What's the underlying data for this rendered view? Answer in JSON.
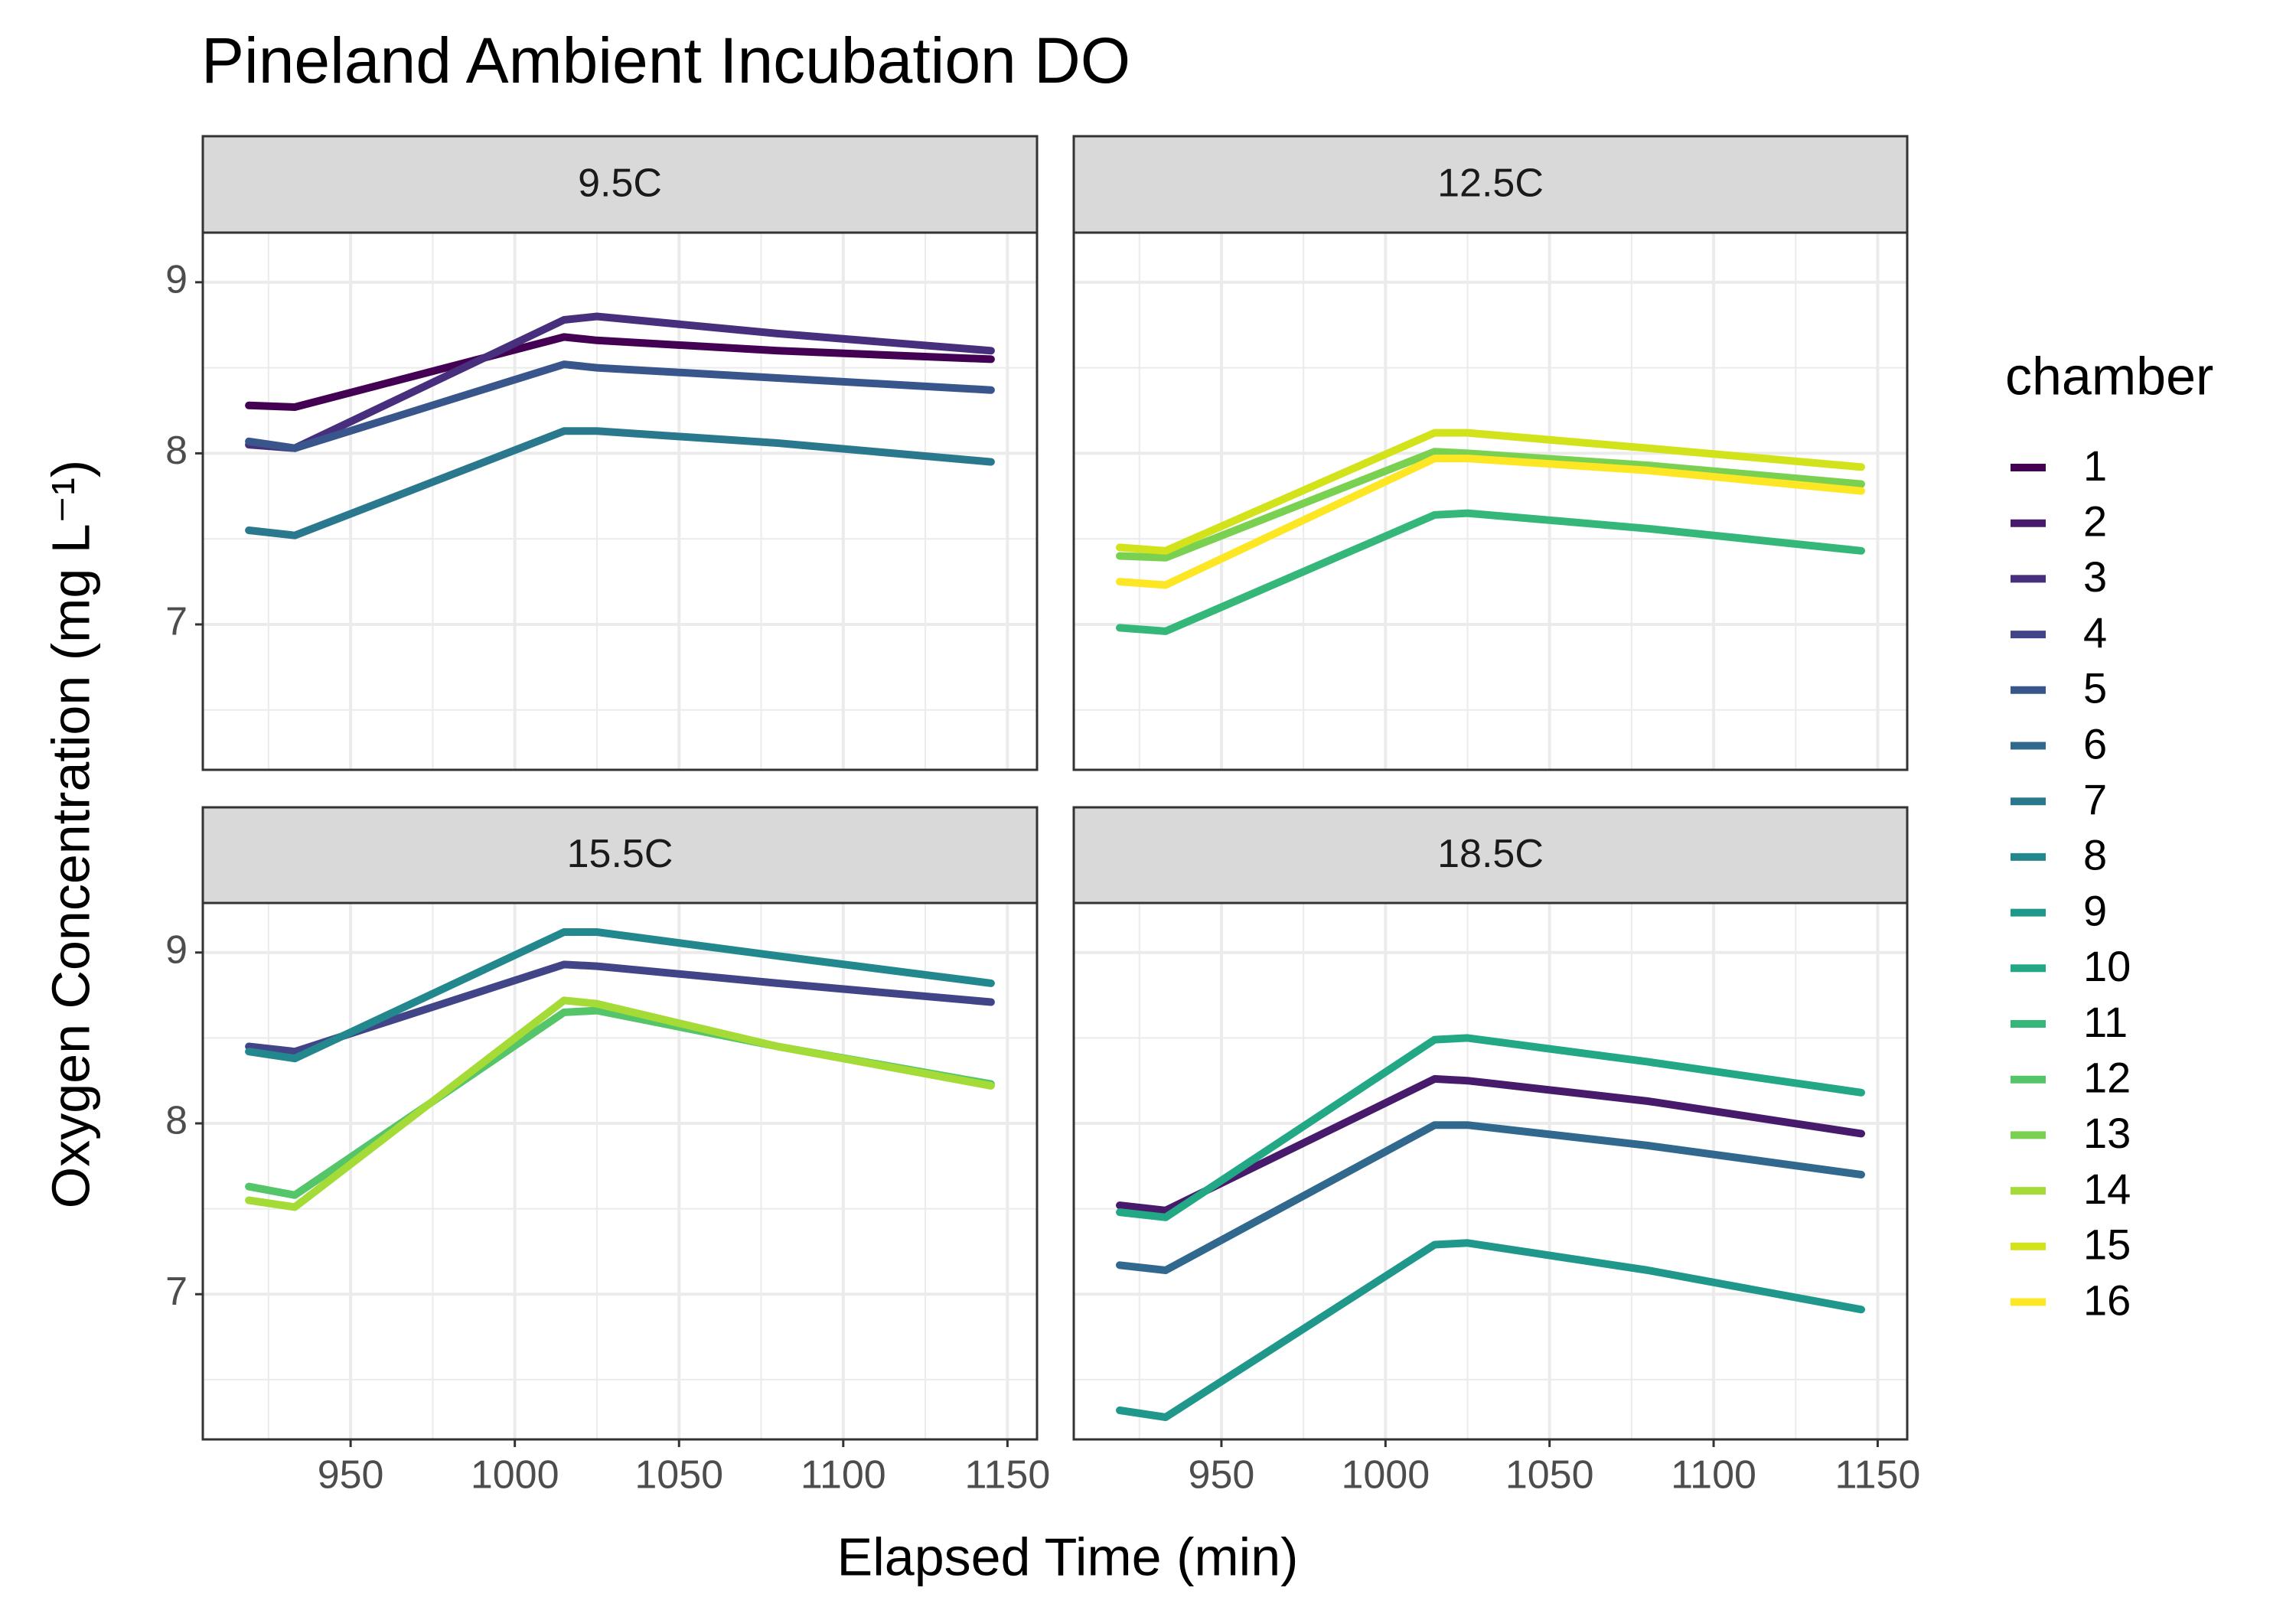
{
  "chart_data": {
    "type": "line",
    "title": "Pineland Ambient Incubation DO",
    "x_label": "Elapsed Time (min)",
    "y_label": "Oxygen Concentration (mg L⁻¹)",
    "legend_title": "chamber",
    "xlim": [
      905,
      1159
    ],
    "xticks": [
      950,
      1000,
      1050,
      1100,
      1150
    ],
    "minor_xticks": [
      925,
      975,
      1025,
      1075,
      1125
    ],
    "ylim": [
      6.15,
      9.29
    ],
    "yticks": [
      7,
      8,
      9
    ],
    "minor_yticks": [
      6.5,
      7.5,
      8.5
    ],
    "grid": true,
    "facets": [
      {
        "label": "9.5C",
        "x": [
          919,
          933,
          1015,
          1025,
          1080,
          1145
        ],
        "series": [
          {
            "name": "1",
            "color": "#440154",
            "values": [
              8.28,
              8.27,
              8.68,
              8.66,
              8.6,
              8.55
            ]
          },
          {
            "name": "3",
            "color": "#472F7D",
            "values": [
              8.05,
              8.03,
              8.78,
              8.8,
              8.7,
              8.6
            ]
          },
          {
            "name": "5",
            "color": "#39568C",
            "values": [
              8.07,
              8.03,
              8.52,
              8.5,
              8.44,
              8.37
            ]
          },
          {
            "name": "7",
            "color": "#2A788E",
            "values": [
              7.55,
              7.52,
              8.13,
              8.13,
              8.06,
              7.95
            ]
          }
        ]
      },
      {
        "label": "12.5C",
        "x": [
          919,
          933,
          1015,
          1025,
          1080,
          1145
        ],
        "series": [
          {
            "name": "11",
            "color": "#35B779",
            "values": [
              6.98,
              6.96,
              7.64,
              7.65,
              7.56,
              7.43
            ]
          },
          {
            "name": "13",
            "color": "#7AD151",
            "values": [
              7.4,
              7.39,
              8.01,
              8.0,
              7.93,
              7.82
            ]
          },
          {
            "name": "15",
            "color": "#D2E21B",
            "values": [
              7.45,
              7.43,
              8.12,
              8.12,
              8.03,
              7.92
            ]
          },
          {
            "name": "16",
            "color": "#FDE725",
            "values": [
              7.25,
              7.23,
              7.97,
              7.97,
              7.9,
              7.78
            ]
          }
        ]
      },
      {
        "label": "15.5C",
        "x": [
          919,
          933,
          1015,
          1025,
          1080,
          1145
        ],
        "series": [
          {
            "name": "4",
            "color": "#414487",
            "values": [
              8.45,
              8.42,
              8.93,
              8.92,
              8.82,
              8.71
            ]
          },
          {
            "name": "8",
            "color": "#23888E",
            "values": [
              8.42,
              8.38,
              9.12,
              9.12,
              8.98,
              8.82
            ]
          },
          {
            "name": "12",
            "color": "#54C568",
            "values": [
              7.63,
              7.58,
              8.65,
              8.66,
              8.45,
              8.23
            ]
          },
          {
            "name": "14",
            "color": "#A5DB36",
            "values": [
              7.55,
              7.51,
              8.72,
              8.7,
              8.45,
              8.22
            ]
          }
        ]
      },
      {
        "label": "18.5C",
        "x": [
          919,
          933,
          1015,
          1025,
          1080,
          1145
        ],
        "series": [
          {
            "name": "2",
            "color": "#481A6C",
            "values": [
              7.52,
              7.49,
              8.26,
              8.25,
              8.13,
              7.94
            ]
          },
          {
            "name": "6",
            "color": "#31688E",
            "values": [
              7.17,
              7.14,
              7.99,
              7.99,
              7.87,
              7.7
            ]
          },
          {
            "name": "9",
            "color": "#1F988B",
            "values": [
              6.32,
              6.28,
              7.29,
              7.3,
              7.14,
              6.91
            ]
          },
          {
            "name": "10",
            "color": "#22A884",
            "values": [
              7.48,
              7.45,
              8.49,
              8.5,
              8.36,
              8.18
            ]
          }
        ]
      }
    ]
  }
}
